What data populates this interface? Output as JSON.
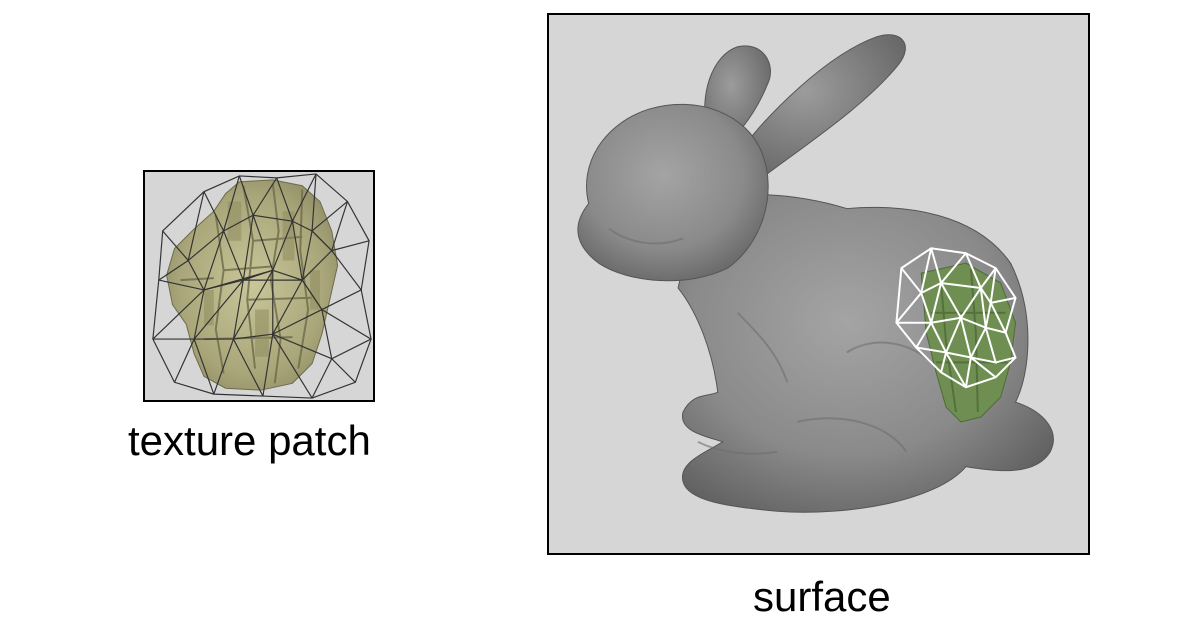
{
  "figure": {
    "texture_panel": {
      "caption": "texture patch",
      "texture_color": "#b9b58a",
      "mesh_color": "#333333"
    },
    "surface_panel": {
      "caption": "surface",
      "model_color": "#8a8a8a",
      "texture_color": "#6f8f52",
      "mesh_color": "#ffffff"
    },
    "background_color": "#d6d6d6"
  }
}
